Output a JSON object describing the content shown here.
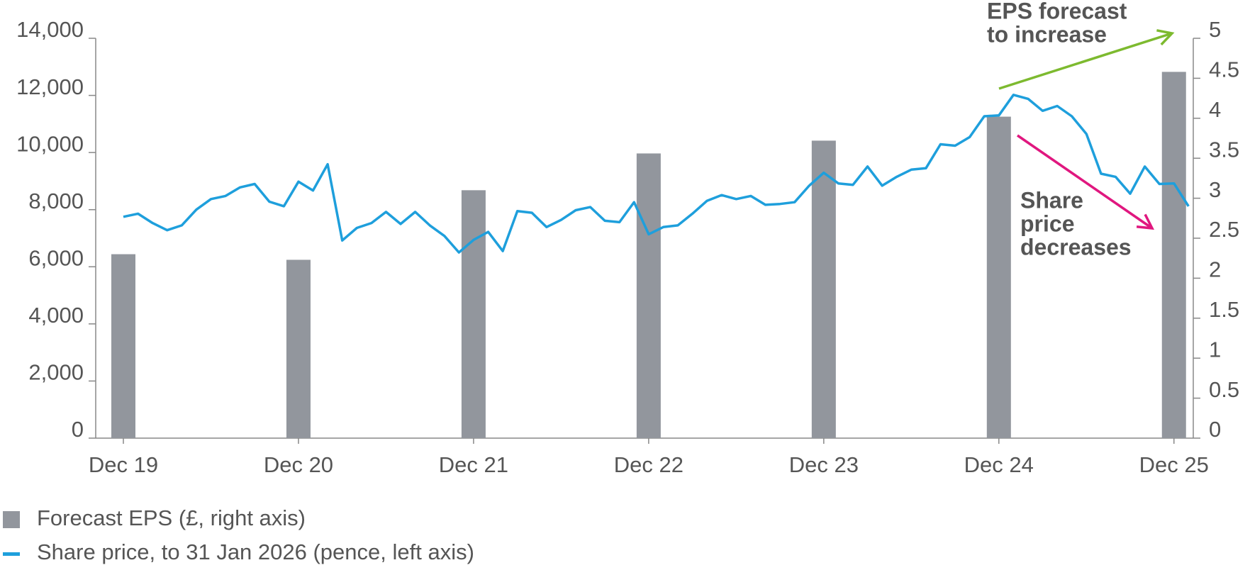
{
  "chart_data": {
    "type": "combo",
    "categories": [
      "Dec 19",
      null,
      null,
      null,
      null,
      null,
      null,
      null,
      null,
      null,
      null,
      null,
      "Dec 20",
      null,
      null,
      null,
      null,
      null,
      null,
      null,
      null,
      null,
      null,
      null,
      "Dec 21",
      null,
      null,
      null,
      null,
      null,
      null,
      null,
      null,
      null,
      null,
      null,
      "Dec 22",
      null,
      null,
      null,
      null,
      null,
      null,
      null,
      null,
      null,
      null,
      null,
      "Dec 23",
      null,
      null,
      null,
      null,
      null,
      null,
      null,
      null,
      null,
      null,
      null,
      "Dec 24",
      null,
      null,
      null,
      null,
      null,
      null,
      null,
      null,
      null,
      null,
      null,
      "Dec 25",
      null
    ],
    "series": [
      {
        "name": "Forecast EPS (£, right axis)",
        "type": "bar",
        "axis": "y2",
        "color": "#92969d",
        "values": [
          2.3,
          null,
          null,
          null,
          null,
          null,
          null,
          null,
          null,
          null,
          null,
          null,
          2.23,
          null,
          null,
          null,
          null,
          null,
          null,
          null,
          null,
          null,
          null,
          null,
          3.1,
          null,
          null,
          null,
          null,
          null,
          null,
          null,
          null,
          null,
          null,
          null,
          3.56,
          null,
          null,
          null,
          null,
          null,
          null,
          null,
          null,
          null,
          null,
          null,
          3.72,
          null,
          null,
          null,
          null,
          null,
          null,
          null,
          null,
          null,
          null,
          null,
          4.02,
          null,
          null,
          null,
          null,
          null,
          null,
          null,
          null,
          null,
          null,
          null,
          4.58,
          null
        ]
      },
      {
        "name": "Share price, to 31 Jan 2026 (pence, left axis)",
        "type": "line",
        "axis": "y",
        "color": "#1e9fdc",
        "values": [
          7750,
          7860,
          7530,
          7280,
          7450,
          8000,
          8370,
          8480,
          8780,
          8900,
          8280,
          8120,
          8980,
          8670,
          9590,
          6920,
          7360,
          7530,
          7920,
          7500,
          7920,
          7450,
          7080,
          6500,
          6940,
          7220,
          6550,
          7950,
          7890,
          7390,
          7640,
          7980,
          8090,
          7610,
          7560,
          8260,
          7140,
          7390,
          7450,
          7860,
          8310,
          8510,
          8370,
          8480,
          8170,
          8200,
          8260,
          8840,
          9290,
          8920,
          8870,
          9510,
          8840,
          9150,
          9400,
          9450,
          10290,
          10240,
          10540,
          11270,
          11300,
          12020,
          11880,
          11460,
          11630,
          11270,
          10650,
          9260,
          9150,
          8560,
          9510,
          8900,
          8920,
          8120
        ]
      }
    ],
    "ylim": [
      0,
      14000
    ],
    "yticks": [
      0,
      {
        "value": 2000,
        "label": "2,000"
      },
      {
        "value": 4000,
        "label": "4,000"
      },
      {
        "value": 6000,
        "label": "6,000"
      },
      {
        "value": 8000,
        "label": "8,000"
      },
      {
        "value": 10000,
        "label": "10,000"
      },
      {
        "value": 12000,
        "label": "12,000"
      },
      {
        "value": 14000,
        "label": "14,000"
      }
    ],
    "y2lim": [
      0,
      5
    ],
    "y2ticks": [
      0,
      0.5,
      1,
      1.5,
      2,
      2.5,
      3,
      3.5,
      4,
      4.5,
      5
    ],
    "annotations": [
      {
        "text": [
          "EPS forecast",
          "to increase"
        ],
        "color": "#7dba2f"
      },
      {
        "text": [
          "Share",
          "price",
          "decreases"
        ],
        "color": "#e0177f"
      }
    ]
  }
}
